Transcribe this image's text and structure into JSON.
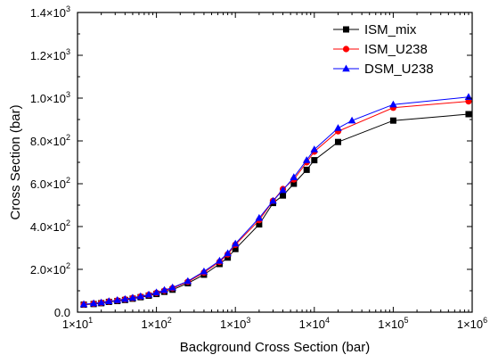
{
  "chart_data": {
    "type": "line",
    "xlabel": "Background Cross Section (bar)",
    "ylabel": "Cross Section (bar)",
    "x_scale": "log",
    "xlim": [
      10,
      1000000
    ],
    "ylim": [
      0,
      1400
    ],
    "grid": false,
    "legend_position": "top-right",
    "x_ticks": [
      {
        "base": "1×10",
        "exp": "1",
        "value": 10
      },
      {
        "base": "1×10",
        "exp": "2",
        "value": 100
      },
      {
        "base": "1×10",
        "exp": "3",
        "value": 1000
      },
      {
        "base": "1×10",
        "exp": "4",
        "value": 10000
      },
      {
        "base": "1×10",
        "exp": "5",
        "value": 100000
      },
      {
        "base": "1×10",
        "exp": "6",
        "value": 1000000
      }
    ],
    "y_ticks": [
      {
        "base": "0.0",
        "exp": "",
        "value": 0
      },
      {
        "base": "2.0×10",
        "exp": "2",
        "value": 200
      },
      {
        "base": "4.0×10",
        "exp": "2",
        "value": 400
      },
      {
        "base": "6.0×10",
        "exp": "2",
        "value": 600
      },
      {
        "base": "8.0×10",
        "exp": "2",
        "value": 800
      },
      {
        "base": "1.0×10",
        "exp": "3",
        "value": 1000
      },
      {
        "base": "1.2×10",
        "exp": "3",
        "value": 1200
      },
      {
        "base": "1.4×10",
        "exp": "3",
        "value": 1400
      }
    ],
    "series": [
      {
        "name": "ISM_mix",
        "color": "#000000",
        "marker": "square",
        "points": [
          [
            12,
            35
          ],
          [
            16,
            38
          ],
          [
            20,
            42
          ],
          [
            25,
            48
          ],
          [
            32,
            52
          ],
          [
            40,
            57
          ],
          [
            50,
            63
          ],
          [
            63,
            70
          ],
          [
            80,
            77
          ],
          [
            100,
            85
          ],
          [
            126,
            95
          ],
          [
            160,
            105
          ],
          [
            250,
            135
          ],
          [
            400,
            175
          ],
          [
            630,
            225
          ],
          [
            800,
            255
          ],
          [
            1000,
            295
          ],
          [
            2000,
            410
          ],
          [
            3000,
            510
          ],
          [
            4000,
            545
          ],
          [
            5500,
            600
          ],
          [
            8000,
            665
          ],
          [
            10000,
            710
          ],
          [
            20000,
            795
          ],
          [
            100000,
            895
          ],
          [
            900000,
            925
          ]
        ]
      },
      {
        "name": "ISM_U238",
        "color": "#ff0000",
        "marker": "circle",
        "points": [
          [
            12,
            36
          ],
          [
            16,
            40
          ],
          [
            20,
            44
          ],
          [
            25,
            50
          ],
          [
            32,
            55
          ],
          [
            40,
            60
          ],
          [
            50,
            66
          ],
          [
            63,
            73
          ],
          [
            80,
            81
          ],
          [
            100,
            90
          ],
          [
            126,
            100
          ],
          [
            160,
            112
          ],
          [
            250,
            142
          ],
          [
            400,
            185
          ],
          [
            630,
            235
          ],
          [
            800,
            270
          ],
          [
            1000,
            315
          ],
          [
            2000,
            430
          ],
          [
            3000,
            520
          ],
          [
            4000,
            575
          ],
          [
            5500,
            620
          ],
          [
            8000,
            700
          ],
          [
            10000,
            750
          ],
          [
            20000,
            845
          ],
          [
            100000,
            955
          ],
          [
            900000,
            985
          ]
        ]
      },
      {
        "name": "DSM_U238",
        "color": "#0000ff",
        "marker": "triangle",
        "points": [
          [
            12,
            37
          ],
          [
            16,
            41
          ],
          [
            20,
            45
          ],
          [
            25,
            51
          ],
          [
            32,
            56
          ],
          [
            40,
            61
          ],
          [
            50,
            67
          ],
          [
            63,
            74
          ],
          [
            80,
            82
          ],
          [
            100,
            92
          ],
          [
            126,
            103
          ],
          [
            160,
            115
          ],
          [
            250,
            145
          ],
          [
            400,
            190
          ],
          [
            630,
            240
          ],
          [
            800,
            275
          ],
          [
            1000,
            320
          ],
          [
            2000,
            440
          ],
          [
            3000,
            520
          ],
          [
            4000,
            570
          ],
          [
            5500,
            630
          ],
          [
            8000,
            710
          ],
          [
            10000,
            760
          ],
          [
            20000,
            860
          ],
          [
            30000,
            895
          ],
          [
            100000,
            970
          ],
          [
            900000,
            1005
          ]
        ]
      }
    ]
  }
}
